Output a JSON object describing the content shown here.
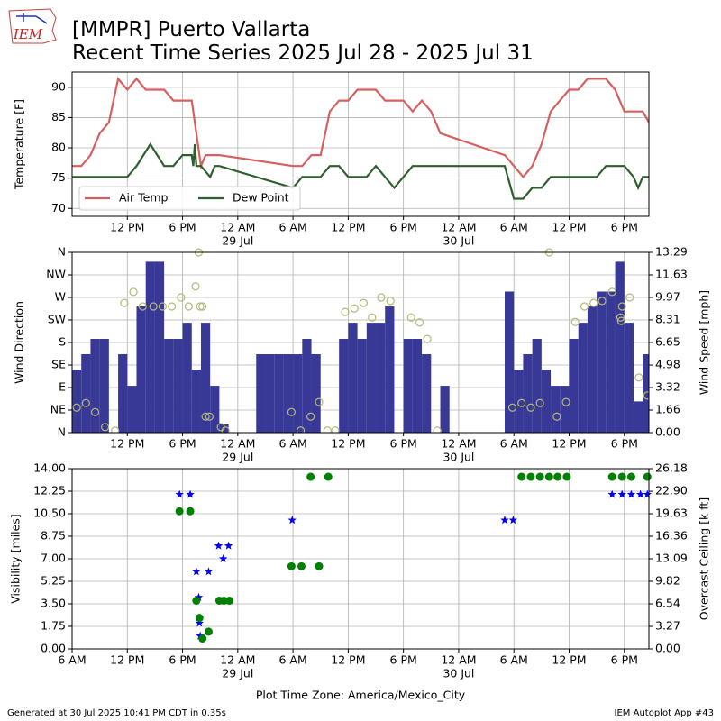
{
  "title": "[MMPR] Puerto Vallarta",
  "subtitle": "Recent Time Series 2025 Jul 28 - 2025 Jul 31",
  "logo": "IEM",
  "footer_left": "Generated at 30 Jul 2025 10:41 PM CDT in 0.35s",
  "footer_right": "IEM Autoplot App #43",
  "chart_data": [
    {
      "type": "line",
      "ylabel": "Temperature [F]",
      "xlim": [
        "2025-07-28T06:00",
        "2025-07-30T20:40"
      ],
      "xticks": [
        {
          "value": "2025-07-28T12:00",
          "label": "12 PM"
        },
        {
          "value": "2025-07-28T18:00",
          "label": "6 PM"
        },
        {
          "value": "2025-07-29T00:00",
          "label": "12 AM"
        },
        {
          "value": "2025-07-29T06:00",
          "label": "6 AM"
        },
        {
          "value": "2025-07-29T12:00",
          "label": "12 PM"
        },
        {
          "value": "2025-07-29T18:00",
          "label": "6 PM"
        },
        {
          "value": "2025-07-30T00:00",
          "label": "12 AM"
        },
        {
          "value": "2025-07-30T06:00",
          "label": "6 AM"
        },
        {
          "value": "2025-07-30T12:00",
          "label": "12 PM"
        },
        {
          "value": "2025-07-30T18:00",
          "label": "6 PM"
        }
      ],
      "xdate_labels": [
        {
          "value": "2025-07-29T00:00",
          "label": "29 Jul"
        },
        {
          "value": "2025-07-30T00:00",
          "label": "30 Jul"
        }
      ],
      "ylim": [
        68.7,
        92.5
      ],
      "yticks": [
        70,
        75,
        80,
        85,
        90
      ],
      "grid": true,
      "legend": "lower left",
      "series": [
        {
          "name": "Air Temp",
          "color": "#d65f5f",
          "x": [
            "2025-07-28T06:00",
            "2025-07-28T07:00",
            "2025-07-28T08:00",
            "2025-07-28T09:00",
            "2025-07-28T10:00",
            "2025-07-28T11:00",
            "2025-07-28T12:00",
            "2025-07-28T13:00",
            "2025-07-28T14:00",
            "2025-07-28T15:00",
            "2025-07-28T16:00",
            "2025-07-28T17:00",
            "2025-07-28T18:00",
            "2025-07-28T19:00",
            "2025-07-28T19:30",
            "2025-07-28T20:00",
            "2025-07-28T20:30",
            "2025-07-28T21:00",
            "2025-07-28T22:00",
            "2025-07-29T06:00",
            "2025-07-29T07:00",
            "2025-07-29T08:00",
            "2025-07-29T09:00",
            "2025-07-29T10:00",
            "2025-07-29T11:00",
            "2025-07-29T12:00",
            "2025-07-29T13:00",
            "2025-07-29T14:00",
            "2025-07-29T15:00",
            "2025-07-29T16:00",
            "2025-07-29T17:00",
            "2025-07-29T18:00",
            "2025-07-29T19:00",
            "2025-07-29T20:00",
            "2025-07-29T21:00",
            "2025-07-29T22:00",
            "2025-07-30T05:00",
            "2025-07-30T07:00",
            "2025-07-30T08:00",
            "2025-07-30T09:00",
            "2025-07-30T10:00",
            "2025-07-30T11:00",
            "2025-07-30T12:00",
            "2025-07-30T13:00",
            "2025-07-30T14:00",
            "2025-07-30T15:00",
            "2025-07-30T16:00",
            "2025-07-30T17:00",
            "2025-07-30T18:00",
            "2025-07-30T19:00",
            "2025-07-30T20:00",
            "2025-07-30T20:40"
          ],
          "values": [
            77,
            77,
            78.8,
            82.4,
            84.2,
            91.4,
            89.6,
            91.4,
            89.6,
            89.6,
            89.6,
            87.8,
            87.8,
            87.8,
            82.4,
            77,
            78.8,
            78.8,
            78.8,
            77,
            77,
            78.8,
            78.8,
            86,
            87.8,
            87.8,
            89.6,
            89.6,
            89.6,
            87.8,
            87.8,
            87.8,
            86,
            87.8,
            86,
            82.4,
            78.8,
            75.2,
            77,
            80.6,
            86,
            87.8,
            89.6,
            89.6,
            91.4,
            91.4,
            91.4,
            89.6,
            86,
            86,
            86,
            84.2
          ]
        },
        {
          "name": "Dew Point",
          "color": "#2e5e2e",
          "x": [
            "2025-07-28T06:00",
            "2025-07-28T12:00",
            "2025-07-28T13:00",
            "2025-07-28T14:30",
            "2025-07-28T16:00",
            "2025-07-28T17:00",
            "2025-07-28T18:00",
            "2025-07-28T19:00",
            "2025-07-28T19:10",
            "2025-07-28T19:20",
            "2025-07-28T19:30",
            "2025-07-28T20:00",
            "2025-07-28T21:00",
            "2025-07-28T21:30",
            "2025-07-28T22:00",
            "2025-07-29T06:00",
            "2025-07-29T07:00",
            "2025-07-29T09:00",
            "2025-07-29T10:00",
            "2025-07-29T11:00",
            "2025-07-29T12:00",
            "2025-07-29T14:00",
            "2025-07-29T15:00",
            "2025-07-29T16:00",
            "2025-07-29T17:00",
            "2025-07-29T18:00",
            "2025-07-29T19:00",
            "2025-07-29T22:00",
            "2025-07-30T05:00",
            "2025-07-30T06:00",
            "2025-07-30T07:00",
            "2025-07-30T08:00",
            "2025-07-30T09:00",
            "2025-07-30T10:00",
            "2025-07-30T15:00",
            "2025-07-30T16:00",
            "2025-07-30T18:00",
            "2025-07-30T19:00",
            "2025-07-30T19:30",
            "2025-07-30T20:00",
            "2025-07-30T20:40"
          ],
          "values": [
            75.2,
            75.2,
            77,
            80.6,
            77,
            77,
            78.8,
            78.8,
            77,
            80.6,
            77,
            77,
            75.2,
            77,
            77,
            73.4,
            75.2,
            75.2,
            77,
            77,
            75.2,
            75.2,
            77,
            75.2,
            73.4,
            75.2,
            77,
            77,
            77,
            71.6,
            71.6,
            73.4,
            73.4,
            75.2,
            75.2,
            77,
            77,
            75.2,
            73.4,
            75.2,
            75.2
          ]
        }
      ]
    },
    {
      "type": "bar",
      "ylabel": "Wind Direction",
      "y2label": "Wind Speed [mph]",
      "xlim": [
        "2025-07-28T06:00",
        "2025-07-30T20:40"
      ],
      "xticks": [
        {
          "value": "2025-07-28T12:00",
          "label": "12 PM"
        },
        {
          "value": "2025-07-28T18:00",
          "label": "6 PM"
        },
        {
          "value": "2025-07-29T00:00",
          "label": "12 AM"
        },
        {
          "value": "2025-07-29T06:00",
          "label": "6 AM"
        },
        {
          "value": "2025-07-29T12:00",
          "label": "12 PM"
        },
        {
          "value": "2025-07-29T18:00",
          "label": "6 PM"
        },
        {
          "value": "2025-07-30T00:00",
          "label": "12 AM"
        },
        {
          "value": "2025-07-30T06:00",
          "label": "6 AM"
        },
        {
          "value": "2025-07-30T12:00",
          "label": "12 PM"
        },
        {
          "value": "2025-07-30T18:00",
          "label": "6 PM"
        }
      ],
      "xdate_labels": [
        {
          "value": "2025-07-29T00:00",
          "label": "29 Jul"
        },
        {
          "value": "2025-07-30T00:00",
          "label": "30 Jul"
        }
      ],
      "ylim": [
        0,
        360
      ],
      "yticks": [
        {
          "value": 0,
          "label": "N"
        },
        {
          "value": 45,
          "label": "NE"
        },
        {
          "value": 90,
          "label": "E"
        },
        {
          "value": 135,
          "label": "SE"
        },
        {
          "value": 180,
          "label": "S"
        },
        {
          "value": 225,
          "label": "SW"
        },
        {
          "value": 270,
          "label": "W"
        },
        {
          "value": 315,
          "label": "NW"
        },
        {
          "value": 360,
          "label": "N"
        }
      ],
      "y2lim": [
        0,
        13.29
      ],
      "y2ticks": [
        {
          "value": 0,
          "label": "0.00"
        },
        1.66,
        3.32,
        4.98,
        6.65,
        8.31,
        9.97,
        11.63,
        13.29
      ],
      "grid": true,
      "series": [
        {
          "type": "bar",
          "axis": "y2",
          "color": "#383896",
          "x": [
            "2025-07-28T06:00",
            "2025-07-28T07:00",
            "2025-07-28T08:00",
            "2025-07-28T09:00",
            "2025-07-28T11:00",
            "2025-07-28T12:00",
            "2025-07-28T13:00",
            "2025-07-28T14:00",
            "2025-07-28T15:00",
            "2025-07-28T16:00",
            "2025-07-28T17:00",
            "2025-07-28T18:00",
            "2025-07-28T19:00",
            "2025-07-28T20:00",
            "2025-07-28T21:00",
            "2025-07-28T22:00",
            "2025-07-29T02:00",
            "2025-07-29T03:00",
            "2025-07-29T04:00",
            "2025-07-29T05:00",
            "2025-07-29T06:00",
            "2025-07-29T07:00",
            "2025-07-29T08:00",
            "2025-07-29T11:00",
            "2025-07-29T12:00",
            "2025-07-29T13:00",
            "2025-07-29T14:00",
            "2025-07-29T15:00",
            "2025-07-29T16:00",
            "2025-07-29T18:00",
            "2025-07-29T19:00",
            "2025-07-29T20:00",
            "2025-07-29T22:00",
            "2025-07-30T05:00",
            "2025-07-30T06:00",
            "2025-07-30T07:00",
            "2025-07-30T08:00",
            "2025-07-30T09:00",
            "2025-07-30T10:00",
            "2025-07-30T11:00",
            "2025-07-30T12:00",
            "2025-07-30T13:00",
            "2025-07-30T14:00",
            "2025-07-30T15:00",
            "2025-07-30T16:00",
            "2025-07-30T17:00",
            "2025-07-30T18:00",
            "2025-07-30T19:00",
            "2025-07-30T20:00"
          ],
          "values": [
            4.65,
            5.78,
            6.91,
            6.91,
            5.78,
            3.45,
            9.3,
            12.6,
            12.6,
            6.91,
            6.91,
            8.1,
            4.65,
            8.1,
            3.45,
            0.6,
            5.78,
            5.78,
            5.78,
            5.78,
            5.78,
            6.91,
            5.78,
            6.91,
            8.1,
            6.91,
            8.1,
            8.1,
            9.3,
            6.91,
            6.91,
            5.78,
            3.45,
            10.4,
            4.65,
            5.78,
            6.91,
            4.65,
            3.45,
            3.45,
            6.91,
            8.1,
            9.3,
            10.4,
            10.4,
            12.6,
            8.1,
            2.3,
            5.78
          ]
        },
        {
          "type": "scatter",
          "marker": "ring",
          "color": "#b5b87a",
          "x": [
            "2025-07-28T06:30",
            "2025-07-28T07:30",
            "2025-07-28T08:30",
            "2025-07-28T09:35",
            "2025-07-28T10:40",
            "2025-07-28T11:40",
            "2025-07-28T12:40",
            "2025-07-28T13:40",
            "2025-07-28T14:50",
            "2025-07-28T15:50",
            "2025-07-28T16:50",
            "2025-07-28T17:50",
            "2025-07-28T18:40",
            "2025-07-28T19:25",
            "2025-07-28T19:45",
            "2025-07-28T19:55",
            "2025-07-28T20:10",
            "2025-07-28T20:30",
            "2025-07-28T20:55",
            "2025-07-28T22:10",
            "2025-07-28T22:40",
            "2025-07-29T05:50",
            "2025-07-29T06:50",
            "2025-07-29T07:55",
            "2025-07-29T08:50",
            "2025-07-29T09:45",
            "2025-07-29T10:35",
            "2025-07-29T11:40",
            "2025-07-29T12:40",
            "2025-07-29T13:40",
            "2025-07-29T14:35",
            "2025-07-29T15:35",
            "2025-07-29T16:35",
            "2025-07-29T18:50",
            "2025-07-29T19:45",
            "2025-07-29T20:35",
            "2025-07-29T21:40",
            "2025-07-30T05:50",
            "2025-07-30T06:50",
            "2025-07-30T07:50",
            "2025-07-30T08:50",
            "2025-07-30T09:50",
            "2025-07-30T10:40",
            "2025-07-30T11:40",
            "2025-07-30T12:40",
            "2025-07-30T13:40",
            "2025-07-30T14:40",
            "2025-07-30T15:35",
            "2025-07-30T16:40",
            "2025-07-30T17:35",
            "2025-07-30T17:40",
            "2025-07-30T17:45",
            "2025-07-30T18:35",
            "2025-07-30T19:35",
            "2025-07-30T20:30"
          ],
          "values": [
            50,
            59,
            41,
            11,
            4,
            259,
            281,
            252,
            252,
            252,
            252,
            270,
            252,
            292,
            360,
            252,
            252,
            32,
            32,
            11,
            4,
            41,
            4,
            32,
            61,
            4,
            4,
            241,
            248,
            259,
            230,
            270,
            263,
            230,
            220,
            187,
            4,
            50,
            59,
            50,
            59,
            360,
            32,
            61,
            221,
            252,
            259,
            263,
            281,
            230,
            223,
            252,
            270,
            110,
            74
          ]
        }
      ]
    },
    {
      "type": "scatter",
      "ylabel": "Visibility [miles]",
      "y2label": "Overcast Ceiling [k ft]",
      "y2label_color": "#008000",
      "xlabel": "Plot Time Zone: America/Mexico_City",
      "xlim": [
        "2025-07-28T06:00",
        "2025-07-30T20:40"
      ],
      "xticks": [
        {
          "value": "2025-07-28T06:00",
          "label": "6 AM"
        },
        {
          "value": "2025-07-28T12:00",
          "label": "12 PM"
        },
        {
          "value": "2025-07-28T18:00",
          "label": "6 PM"
        },
        {
          "value": "2025-07-29T00:00",
          "label": "12 AM"
        },
        {
          "value": "2025-07-29T06:00",
          "label": "6 AM"
        },
        {
          "value": "2025-07-29T12:00",
          "label": "12 PM"
        },
        {
          "value": "2025-07-29T18:00",
          "label": "6 PM"
        },
        {
          "value": "2025-07-30T00:00",
          "label": "12 AM"
        },
        {
          "value": "2025-07-30T06:00",
          "label": "6 AM"
        },
        {
          "value": "2025-07-30T12:00",
          "label": "12 PM"
        },
        {
          "value": "2025-07-30T18:00",
          "label": "6 PM"
        }
      ],
      "xdate_labels": [
        {
          "value": "2025-07-29T00:00",
          "label": "29 Jul"
        },
        {
          "value": "2025-07-30T00:00",
          "label": "30 Jul"
        }
      ],
      "ylim": [
        0,
        14
      ],
      "yticks": [
        {
          "value": 0,
          "label": "0.00"
        },
        1.75,
        {
          "value": 3.5,
          "label": "3.50"
        },
        5.25,
        {
          "value": 7,
          "label": "7.00"
        },
        8.75,
        {
          "value": 10.5,
          "label": "10.50"
        },
        12.25,
        {
          "value": 14,
          "label": "14.00"
        }
      ],
      "y2lim": [
        0,
        26.18
      ],
      "y2ticks": [
        {
          "value": 0,
          "label": "0.00"
        },
        3.27,
        6.54,
        9.82,
        13.09,
        16.36,
        19.63,
        {
          "value": 22.9,
          "label": "22.90"
        },
        26.18
      ],
      "grid": true,
      "series": [
        {
          "type": "scatter",
          "marker": "star",
          "color": "#0000ff",
          "x": [
            "2025-07-28T17:40",
            "2025-07-28T18:50",
            "2025-07-28T19:30",
            "2025-07-28T19:45",
            "2025-07-28T19:50",
            "2025-07-28T19:55",
            "2025-07-28T20:50",
            "2025-07-28T21:55",
            "2025-07-28T22:25",
            "2025-07-28T23:00",
            "2025-07-29T05:55",
            "2025-07-30T05:00",
            "2025-07-30T05:55",
            "2025-07-30T16:40",
            "2025-07-30T17:45",
            "2025-07-30T18:45",
            "2025-07-30T19:45",
            "2025-07-30T20:30"
          ],
          "values": [
            12,
            12,
            6,
            4,
            2,
            1,
            6,
            8,
            7,
            8,
            10,
            10,
            10,
            12,
            12,
            12,
            12,
            12
          ]
        },
        {
          "type": "scatter",
          "marker": "dot",
          "axis": "y2",
          "color": "#008000",
          "x": [
            "2025-07-28T17:40",
            "2025-07-28T18:50",
            "2025-07-28T19:30",
            "2025-07-28T19:50",
            "2025-07-28T20:10",
            "2025-07-28T20:50",
            "2025-07-28T22:00",
            "2025-07-28T22:30",
            "2025-07-28T23:05",
            "2025-07-29T05:50",
            "2025-07-29T06:55",
            "2025-07-29T07:55",
            "2025-07-29T08:50",
            "2025-07-29T09:50",
            "2025-07-30T06:50",
            "2025-07-30T07:50",
            "2025-07-30T08:50",
            "2025-07-30T09:50",
            "2025-07-30T10:45",
            "2025-07-30T11:45",
            "2025-07-30T16:40",
            "2025-07-30T17:45",
            "2025-07-30T18:45",
            "2025-07-30T20:30"
          ],
          "values": [
            20,
            20,
            7,
            4.5,
            1.5,
            2.5,
            7,
            7,
            7,
            12,
            12,
            25,
            12,
            25,
            25,
            25,
            25,
            25,
            25,
            25,
            25,
            25,
            25,
            25
          ]
        }
      ]
    }
  ]
}
